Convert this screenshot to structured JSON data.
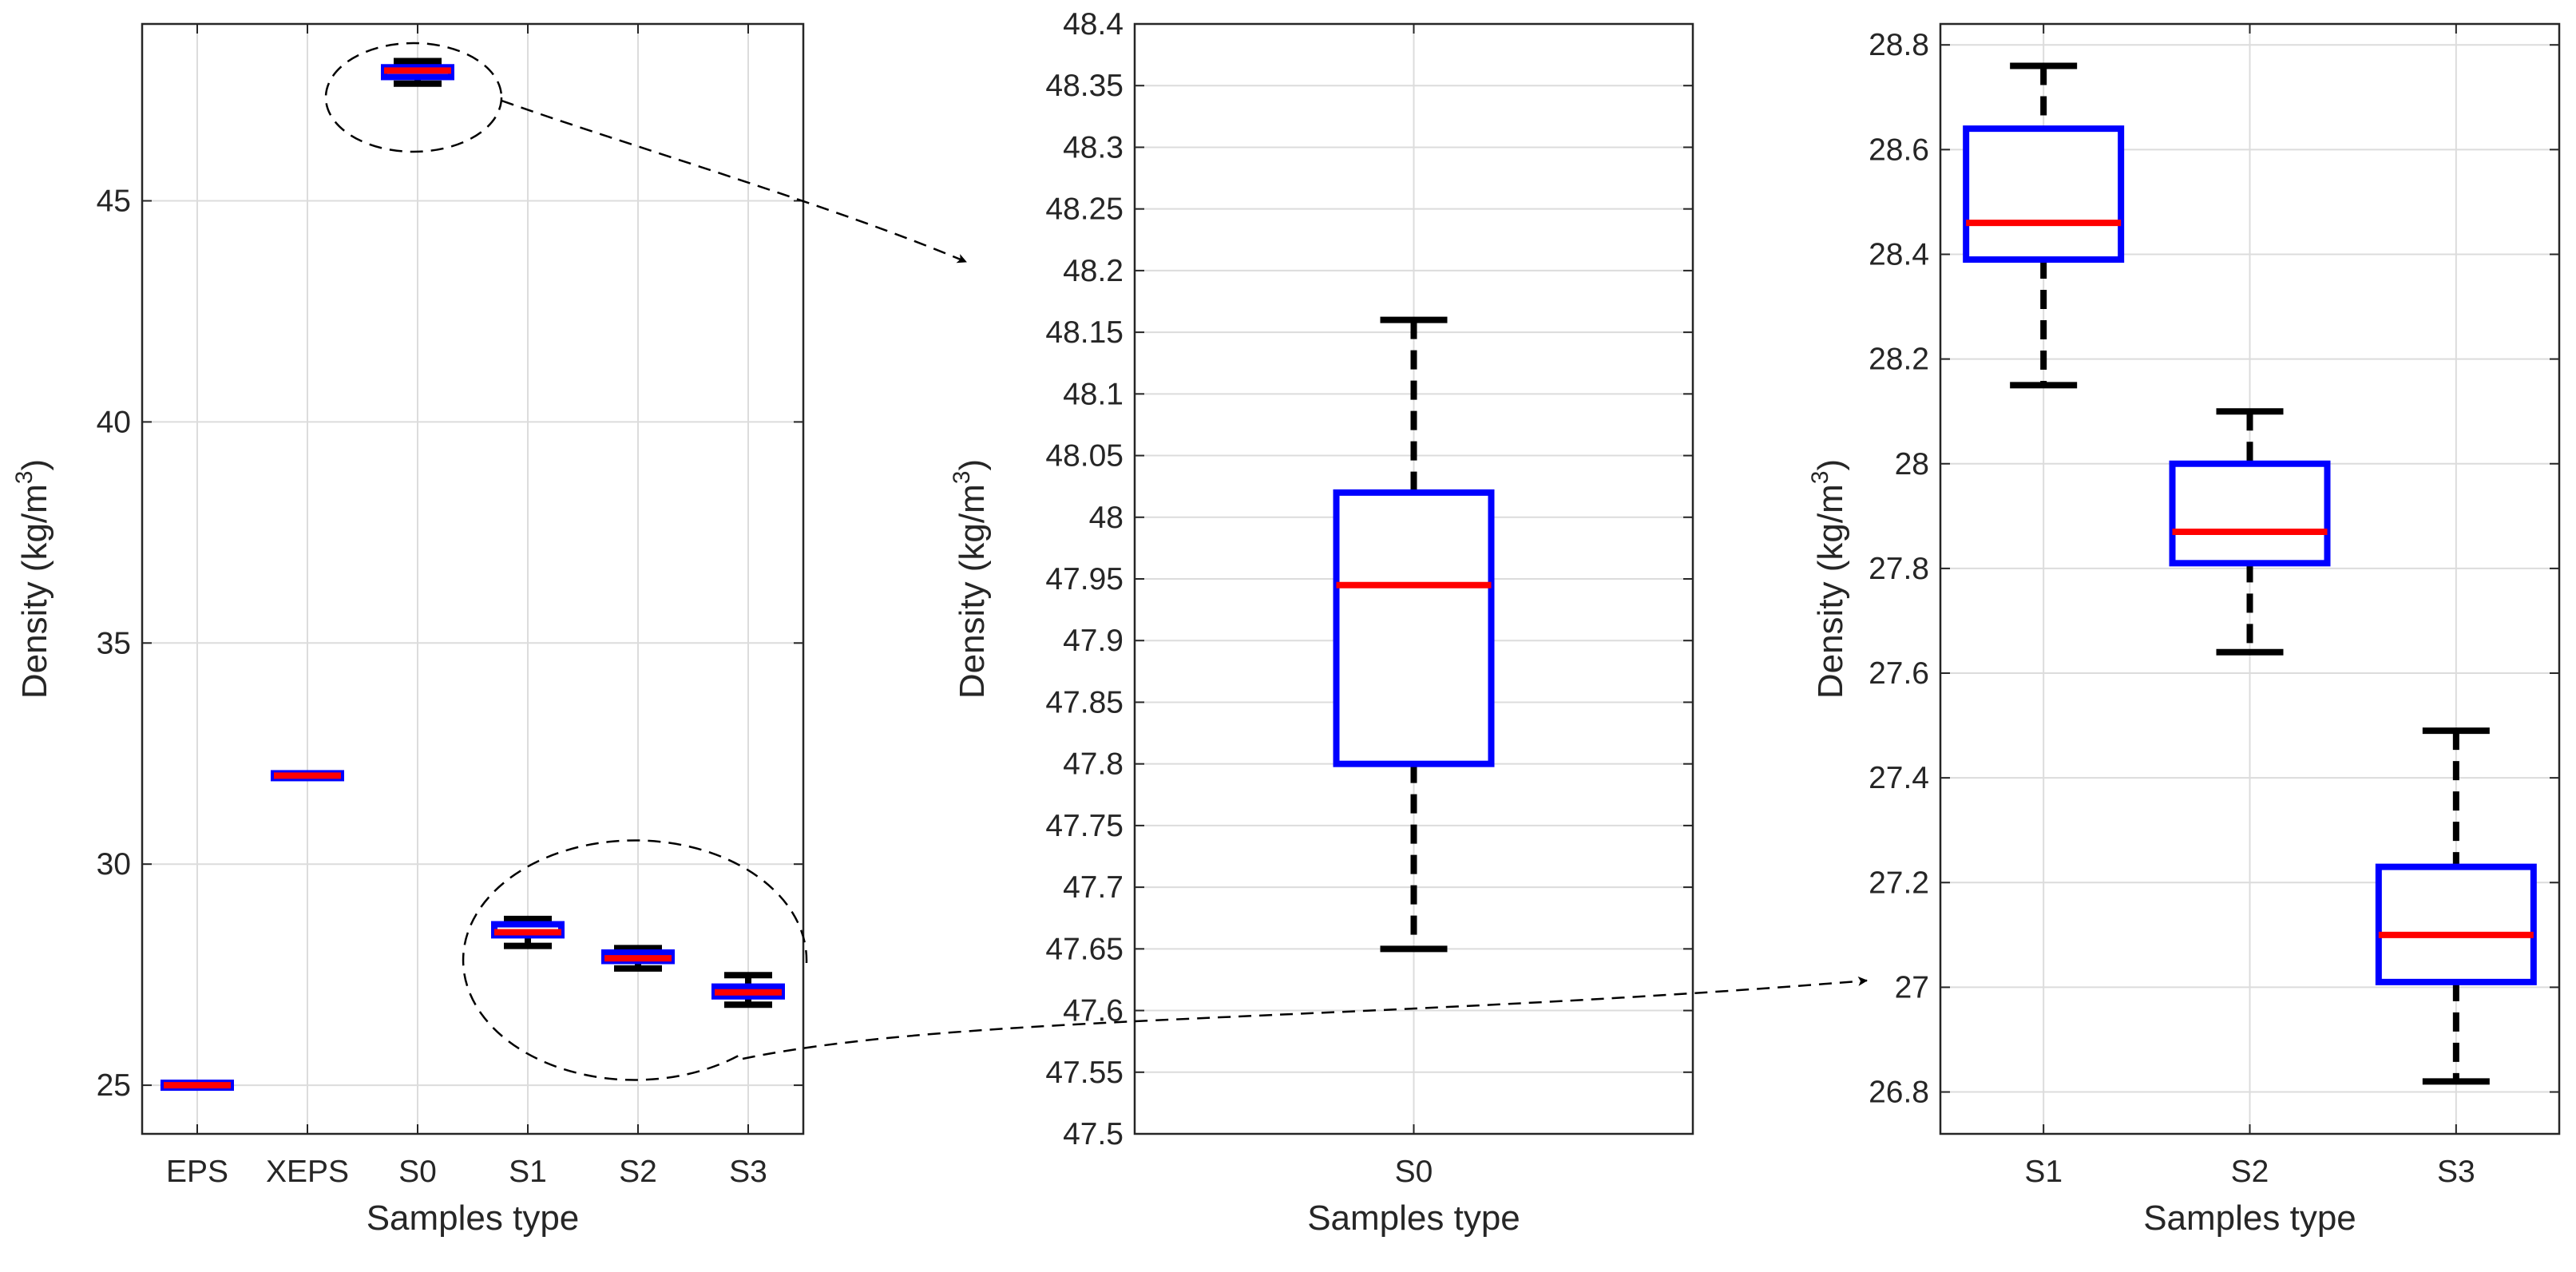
{
  "chart_data": [
    {
      "type": "box",
      "title": "",
      "xlabel": "Samples type",
      "ylabel": "Density (kg/m",
      "ylabel_sup": "3",
      "ylabel_close": ")",
      "ylim": [
        23.9,
        49
      ],
      "yticks": [
        25,
        30,
        35,
        40,
        45
      ],
      "grid": true,
      "categories": [
        "EPS",
        "XEPS",
        "S0",
        "S1",
        "S2",
        "S3"
      ],
      "boxes": [
        {
          "name": "EPS",
          "min": 24.97,
          "q1": 24.97,
          "median": 25.0,
          "q3": 25.03,
          "max": 25.03
        },
        {
          "name": "XEPS",
          "min": 31.97,
          "q1": 31.97,
          "median": 32.0,
          "q3": 32.03,
          "max": 32.03
        },
        {
          "name": "S0",
          "min": 47.65,
          "q1": 47.8,
          "median": 47.945,
          "q3": 48.02,
          "max": 48.16
        },
        {
          "name": "S1",
          "min": 28.15,
          "q1": 28.39,
          "median": 28.46,
          "q3": 28.64,
          "max": 28.76
        },
        {
          "name": "S2",
          "min": 27.64,
          "q1": 27.81,
          "median": 27.87,
          "q3": 28.0,
          "max": 28.1
        },
        {
          "name": "S3",
          "min": 26.82,
          "q1": 27.01,
          "median": 27.1,
          "q3": 27.23,
          "max": 27.49
        }
      ]
    },
    {
      "type": "box",
      "title": "",
      "xlabel": "Samples type",
      "ylabel": "Density (kg/m",
      "ylabel_sup": "3",
      "ylabel_close": ")",
      "ylim": [
        47.5,
        48.4
      ],
      "yticks": [
        47.5,
        47.55,
        47.6,
        47.65,
        47.7,
        47.75,
        47.8,
        47.85,
        47.9,
        47.95,
        48,
        48.05,
        48.1,
        48.15,
        48.2,
        48.25,
        48.3,
        48.35,
        48.4
      ],
      "grid": true,
      "categories": [
        "S0"
      ],
      "boxes": [
        {
          "name": "S0",
          "min": 47.65,
          "q1": 47.8,
          "median": 47.945,
          "q3": 48.02,
          "max": 48.16
        }
      ]
    },
    {
      "type": "box",
      "title": "",
      "xlabel": "Samples type",
      "ylabel": "Density (kg/m",
      "ylabel_sup": "3",
      "ylabel_close": ")",
      "ylim": [
        26.72,
        28.84
      ],
      "yticks": [
        26.8,
        27,
        27.2,
        27.4,
        27.6,
        27.8,
        28,
        28.2,
        28.4,
        28.6,
        28.8
      ],
      "grid": true,
      "categories": [
        "S1",
        "S2",
        "S3"
      ],
      "boxes": [
        {
          "name": "S1",
          "min": 28.15,
          "q1": 28.39,
          "median": 28.46,
          "q3": 28.64,
          "max": 28.76
        },
        {
          "name": "S2",
          "min": 27.64,
          "q1": 27.81,
          "median": 27.87,
          "q3": 28.0,
          "max": 28.1
        },
        {
          "name": "S3",
          "min": 26.82,
          "q1": 27.01,
          "median": 27.1,
          "q3": 27.23,
          "max": 27.49
        }
      ]
    }
  ],
  "colors": {
    "box": "#0000ff",
    "median": "#ff0000",
    "whisker": "#000000",
    "grid": "#dcdcdc",
    "axis": "#262626"
  }
}
